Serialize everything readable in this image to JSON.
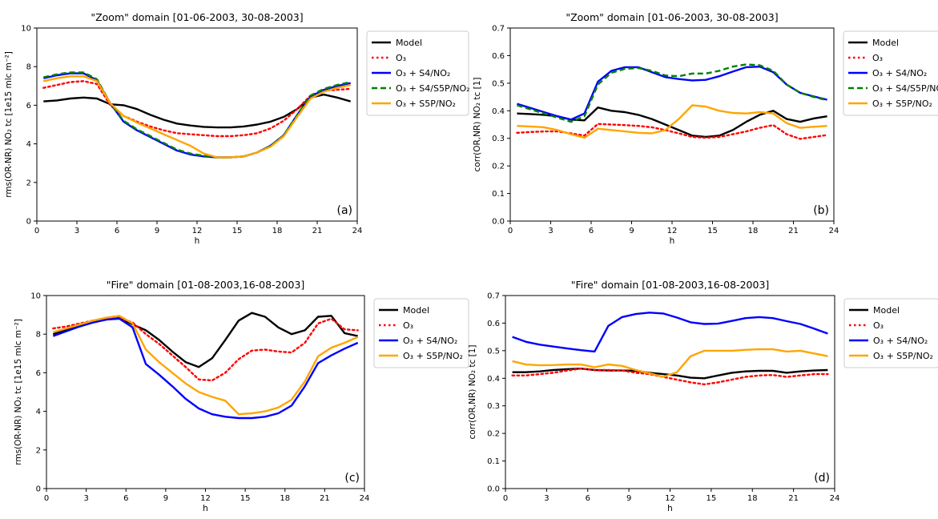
{
  "chart_data": [
    {
      "type": "line",
      "title": "\"Zoom\" domain  [01-06-2003, 30-08-2003]",
      "xlabel": "h",
      "ylabel": "rms(OR-NR)  NO₂  tc  [1e15 mlc m⁻²]",
      "panel_label": "(a)",
      "xlim": [
        0,
        24
      ],
      "ylim": [
        0,
        10
      ],
      "xticks": [
        0,
        3,
        6,
        9,
        12,
        15,
        18,
        21,
        24
      ],
      "yticks": [
        0,
        2,
        4,
        6,
        8,
        10
      ],
      "ytick_labels": [
        "0",
        "2",
        "4",
        "6",
        "8",
        "10"
      ],
      "grid": false,
      "legend_position": "outside-right",
      "x": [
        0.5,
        1.5,
        2.5,
        3.5,
        4.5,
        5.5,
        6.5,
        7.5,
        8.5,
        9.5,
        10.5,
        11.5,
        12.5,
        13.5,
        14.5,
        15.5,
        16.5,
        17.5,
        18.5,
        19.5,
        20.5,
        21.5,
        22.5,
        23.5
      ],
      "series": [
        {
          "name": "Model",
          "color": "#000000",
          "dash": "solid",
          "values": [
            6.2,
            6.25,
            6.35,
            6.4,
            6.35,
            6.05,
            6.0,
            5.8,
            5.5,
            5.25,
            5.05,
            4.95,
            4.88,
            4.85,
            4.85,
            4.9,
            5.0,
            5.15,
            5.4,
            5.8,
            6.4,
            6.55,
            6.4,
            6.2
          ]
        },
        {
          "name": "O₃",
          "color": "#ff0000",
          "dash": "dot",
          "values": [
            6.9,
            7.05,
            7.2,
            7.25,
            7.1,
            6.0,
            5.45,
            5.15,
            4.9,
            4.7,
            4.55,
            4.5,
            4.45,
            4.4,
            4.4,
            4.45,
            4.55,
            4.8,
            5.2,
            5.8,
            6.5,
            6.75,
            6.8,
            6.85
          ]
        },
        {
          "name": "O₃ + S4/NO₂",
          "color": "#0000ff",
          "dash": "solid",
          "values": [
            7.4,
            7.55,
            7.65,
            7.65,
            7.3,
            6.1,
            5.15,
            4.7,
            4.35,
            4.0,
            3.65,
            3.45,
            3.35,
            3.3,
            3.3,
            3.35,
            3.55,
            3.9,
            4.45,
            5.5,
            6.45,
            6.8,
            7.0,
            7.15
          ]
        },
        {
          "name": "O₃ + S4/S5P/NO₂",
          "color": "#008000",
          "dash": "dash",
          "values": [
            7.45,
            7.6,
            7.7,
            7.7,
            7.35,
            6.1,
            5.2,
            4.75,
            4.4,
            4.05,
            3.7,
            3.5,
            3.38,
            3.3,
            3.3,
            3.35,
            3.55,
            3.9,
            4.45,
            5.5,
            6.5,
            6.85,
            7.05,
            7.2
          ]
        },
        {
          "name": "O₃ + S5P/NO₂",
          "color": "#ffa500",
          "dash": "solid",
          "values": [
            7.25,
            7.4,
            7.5,
            7.5,
            7.25,
            6.1,
            5.45,
            5.1,
            4.8,
            4.5,
            4.2,
            3.9,
            3.5,
            3.3,
            3.3,
            3.35,
            3.55,
            3.85,
            4.4,
            5.4,
            6.35,
            6.7,
            6.9,
            7.05
          ]
        }
      ]
    },
    {
      "type": "line",
      "title": "\"Zoom\" domain  [01-06-2003, 30-08-2003]",
      "xlabel": "h",
      "ylabel": "corr(OR,NR)  NO₂  tc  [1]",
      "panel_label": "(b)",
      "xlim": [
        0,
        24
      ],
      "ylim": [
        0,
        0.7
      ],
      "xticks": [
        0,
        3,
        6,
        9,
        12,
        15,
        18,
        21,
        24
      ],
      "yticks": [
        0,
        0.1,
        0.2,
        0.3,
        0.4,
        0.5,
        0.6,
        0.7
      ],
      "ytick_labels": [
        "0.0",
        "0.1",
        "0.2",
        "0.3",
        "0.4",
        "0.5",
        "0.6",
        "0.7"
      ],
      "grid": false,
      "legend_position": "outside-right",
      "x": [
        0.5,
        1.5,
        2.5,
        3.5,
        4.5,
        5.5,
        6.5,
        7.5,
        8.5,
        9.5,
        10.5,
        11.5,
        12.5,
        13.5,
        14.5,
        15.5,
        16.5,
        17.5,
        18.5,
        19.5,
        20.5,
        21.5,
        22.5,
        23.5
      ],
      "series": [
        {
          "name": "Model",
          "color": "#000000",
          "dash": "solid",
          "values": [
            0.39,
            0.388,
            0.385,
            0.38,
            0.368,
            0.365,
            0.412,
            0.4,
            0.395,
            0.385,
            0.37,
            0.35,
            0.33,
            0.31,
            0.305,
            0.31,
            0.33,
            0.36,
            0.385,
            0.4,
            0.37,
            0.36,
            0.372,
            0.38
          ]
        },
        {
          "name": "O₃",
          "color": "#ff0000",
          "dash": "dot",
          "values": [
            0.32,
            0.323,
            0.325,
            0.325,
            0.318,
            0.31,
            0.352,
            0.35,
            0.348,
            0.345,
            0.34,
            0.33,
            0.318,
            0.305,
            0.302,
            0.305,
            0.315,
            0.325,
            0.338,
            0.348,
            0.315,
            0.298,
            0.305,
            0.312
          ]
        },
        {
          "name": "O₃ + S4/NO₂",
          "color": "#0000ff",
          "dash": "solid",
          "values": [
            0.425,
            0.41,
            0.395,
            0.38,
            0.368,
            0.39,
            0.505,
            0.545,
            0.558,
            0.558,
            0.54,
            0.522,
            0.515,
            0.51,
            0.512,
            0.525,
            0.542,
            0.558,
            0.56,
            0.54,
            0.495,
            0.465,
            0.452,
            0.44
          ]
        },
        {
          "name": "O₃ + S4/S5P/NO₂",
          "color": "#008000",
          "dash": "dash",
          "values": [
            0.42,
            0.405,
            0.39,
            0.375,
            0.36,
            0.38,
            0.495,
            0.538,
            0.552,
            0.555,
            0.545,
            0.528,
            0.525,
            0.535,
            0.535,
            0.545,
            0.56,
            0.568,
            0.565,
            0.545,
            0.495,
            0.465,
            0.45,
            0.438
          ]
        },
        {
          "name": "O₃ + S5P/NO₂",
          "color": "#ffa500",
          "dash": "solid",
          "values": [
            0.345,
            0.343,
            0.34,
            0.33,
            0.315,
            0.302,
            0.335,
            0.33,
            0.325,
            0.32,
            0.318,
            0.33,
            0.37,
            0.42,
            0.415,
            0.4,
            0.392,
            0.39,
            0.395,
            0.39,
            0.355,
            0.338,
            0.342,
            0.345
          ]
        }
      ]
    },
    {
      "type": "line",
      "title": "\"Fire\" domain  [01-08-2003,16-08-2003]",
      "xlabel": "h",
      "ylabel": "rms(OR-NR)  NO₂  tc  [1e15 mlc m⁻²]",
      "panel_label": "(c)",
      "xlim": [
        0,
        24
      ],
      "ylim": [
        0,
        10
      ],
      "xticks": [
        0,
        3,
        6,
        9,
        12,
        15,
        18,
        21,
        24
      ],
      "yticks": [
        0,
        2,
        4,
        6,
        8,
        10
      ],
      "ytick_labels": [
        "0",
        "2",
        "4",
        "6",
        "8",
        "10"
      ],
      "grid": false,
      "legend_position": "outside-right",
      "x": [
        0.5,
        1.5,
        2.5,
        3.5,
        4.5,
        5.5,
        6.5,
        7.5,
        8.5,
        9.5,
        10.5,
        11.5,
        12.5,
        13.5,
        14.5,
        15.5,
        16.5,
        17.5,
        18.5,
        19.5,
        20.5,
        21.5,
        22.5,
        23.5
      ],
      "series": [
        {
          "name": "Model",
          "color": "#000000",
          "dash": "solid",
          "values": [
            8.0,
            8.2,
            8.4,
            8.6,
            8.75,
            8.85,
            8.5,
            8.2,
            7.7,
            7.1,
            6.55,
            6.3,
            6.75,
            7.7,
            8.7,
            9.1,
            8.9,
            8.35,
            8.0,
            8.2,
            8.9,
            8.95,
            8.05,
            7.9
          ]
        },
        {
          "name": "O₃",
          "color": "#ff0000",
          "dash": "dot",
          "values": [
            8.3,
            8.4,
            8.55,
            8.7,
            8.8,
            8.85,
            8.6,
            8.0,
            7.5,
            6.9,
            6.3,
            5.65,
            5.6,
            6.0,
            6.7,
            7.15,
            7.2,
            7.1,
            7.05,
            7.55,
            8.55,
            8.8,
            8.25,
            8.2
          ]
        },
        {
          "name": "O₃ + S4/NO₂",
          "color": "#0000ff",
          "dash": "solid",
          "values": [
            7.9,
            8.15,
            8.4,
            8.6,
            8.75,
            8.8,
            8.35,
            6.45,
            5.9,
            5.3,
            4.65,
            4.15,
            3.85,
            3.72,
            3.65,
            3.65,
            3.72,
            3.9,
            4.3,
            5.3,
            6.5,
            6.9,
            7.25,
            7.55
          ]
        },
        {
          "name": "O₃ + S5P/NO₂",
          "color": "#ffa500",
          "dash": "solid",
          "values": [
            8.1,
            8.3,
            8.5,
            8.7,
            8.85,
            8.95,
            8.55,
            7.2,
            6.55,
            6.0,
            5.45,
            5.0,
            4.75,
            4.55,
            3.85,
            3.9,
            4.0,
            4.2,
            4.6,
            5.55,
            6.85,
            7.3,
            7.55,
            7.85
          ]
        }
      ]
    },
    {
      "type": "line",
      "title": "\"Fire\" domain  [01-08-2003,16-08-2003]",
      "xlabel": "h",
      "ylabel": "corr(OR,NR)  NO₂  tc  [1]",
      "panel_label": "(d)",
      "xlim": [
        0,
        24
      ],
      "ylim": [
        0,
        0.7
      ],
      "xticks": [
        0,
        3,
        6,
        9,
        12,
        15,
        18,
        21,
        24
      ],
      "yticks": [
        0,
        0.1,
        0.2,
        0.3,
        0.4,
        0.5,
        0.6,
        0.7
      ],
      "ytick_labels": [
        "0.0",
        "0.1",
        "0.2",
        "0.3",
        "0.4",
        "0.5",
        "0.6",
        "0.7"
      ],
      "grid": false,
      "legend_position": "outside-right",
      "x": [
        0.5,
        1.5,
        2.5,
        3.5,
        4.5,
        5.5,
        6.5,
        7.5,
        8.5,
        9.5,
        10.5,
        11.5,
        12.5,
        13.5,
        14.5,
        15.5,
        16.5,
        17.5,
        18.5,
        19.5,
        20.5,
        21.5,
        22.5,
        23.5
      ],
      "series": [
        {
          "name": "Model",
          "color": "#000000",
          "dash": "solid",
          "values": [
            0.422,
            0.422,
            0.425,
            0.43,
            0.433,
            0.435,
            0.43,
            0.428,
            0.428,
            0.427,
            0.42,
            0.415,
            0.41,
            0.402,
            0.4,
            0.41,
            0.42,
            0.425,
            0.427,
            0.427,
            0.42,
            0.425,
            0.428,
            0.43
          ]
        },
        {
          "name": "O₃",
          "color": "#ff0000",
          "dash": "dot",
          "values": [
            0.41,
            0.41,
            0.415,
            0.42,
            0.428,
            0.435,
            0.43,
            0.43,
            0.428,
            0.42,
            0.415,
            0.405,
            0.395,
            0.385,
            0.378,
            0.385,
            0.395,
            0.405,
            0.41,
            0.412,
            0.405,
            0.41,
            0.415,
            0.415
          ]
        },
        {
          "name": "O₃ + S4/NO₂",
          "color": "#0000ff",
          "dash": "solid",
          "values": [
            0.55,
            0.532,
            0.522,
            0.515,
            0.508,
            0.502,
            0.497,
            0.59,
            0.622,
            0.633,
            0.638,
            0.635,
            0.62,
            0.603,
            0.597,
            0.598,
            0.608,
            0.618,
            0.622,
            0.618,
            0.607,
            0.597,
            0.58,
            0.562
          ]
        },
        {
          "name": "O₃ + S5P/NO₂",
          "color": "#ffa500",
          "dash": "solid",
          "values": [
            0.462,
            0.45,
            0.447,
            0.448,
            0.45,
            0.45,
            0.44,
            0.45,
            0.445,
            0.43,
            0.418,
            0.405,
            0.422,
            0.48,
            0.5,
            0.5,
            0.5,
            0.503,
            0.505,
            0.505,
            0.497,
            0.5,
            0.49,
            0.48
          ]
        }
      ]
    }
  ]
}
